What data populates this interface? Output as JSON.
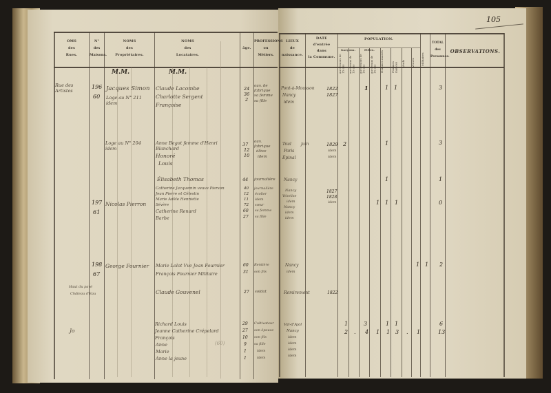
{
  "page_number": "105",
  "headers": {
    "rue": [
      "OMS",
      "des",
      "Rues."
    ],
    "maison": [
      "N°",
      "des",
      "Maisons."
    ],
    "proprietaires": [
      "NOMS",
      "des",
      "Propriétaires."
    ],
    "locataires": [
      "NOMS",
      "des",
      "Locataires."
    ],
    "age": "âge.",
    "profession": [
      "PROFESSIONS",
      "ou",
      "Métiers."
    ],
    "lieu": [
      "LIEUX",
      "de",
      "naissance."
    ],
    "date": [
      "DATE",
      "d'entrée",
      "dans",
      "la Commune."
    ],
    "population": "POPULATION.",
    "population_groups": [
      "Garçons.",
      "Filles."
    ],
    "population_sub": [
      "au-dessous de 15 ans",
      "au-dessus de 15 ans",
      "au-dessous de 15 ans",
      "au-dessus de 15 ans",
      "Hommes mariés",
      "Femmes mariées",
      "Veufs",
      "Veuves"
    ],
    "militaires": "Militaires",
    "total": [
      "TOTAL",
      "des",
      "Personnes."
    ],
    "observations": "OBSERVATIONS."
  },
  "mm_labels": [
    "M.M.",
    "M.M."
  ],
  "entries": [
    {
      "rue": "Rue des Artistes",
      "maison": [
        "196",
        "60"
      ],
      "proprietaire": [
        "Jacques Simon",
        "Loge au N° 211 idem"
      ],
      "locataires": [
        "Claude Lacombe",
        "Charlotte Sergent",
        "Françoise"
      ],
      "ages": [
        "24",
        "36",
        "2"
      ],
      "professions": [
        "ouv. de fabrique",
        "sa femme",
        "sa fille"
      ],
      "lieux": [
        "Pont-à-Mousson",
        "Nancy",
        "idem"
      ],
      "dates": [
        "1822",
        "1827"
      ],
      "population_marks": [
        "1",
        "1",
        "1"
      ],
      "total": "3"
    },
    {
      "proprietaire": [
        "Loge au N° 204 idem"
      ],
      "locataires": [
        "Anne Begot femme d'Henri Blanchard",
        "Honoré",
        "Louis"
      ],
      "ages": [
        "37",
        "12",
        "10"
      ],
      "professions": [
        "ouv. fabrique",
        "élève",
        "idem"
      ],
      "lieux": [
        "Toul",
        "Paris",
        "Épinal"
      ],
      "lieu_note": "juin",
      "dates": [
        "1829",
        "idem",
        "idem"
      ],
      "population_marks": [
        "2",
        "1"
      ],
      "total": "3"
    },
    {
      "locataires": [
        "Élisabeth Thomas"
      ],
      "ages": [
        "44"
      ],
      "professions": [
        "journalière"
      ],
      "lieux": [
        "Nancy"
      ],
      "population_marks": [
        "1"
      ],
      "total": "1"
    },
    {
      "maison": [
        "197",
        "61"
      ],
      "proprietaire": [
        "Nicolas Pierron"
      ],
      "locataires": [
        "Catherine Jacquemin veuve Pierson",
        "Jean Pierre et Célestin",
        "Marie Adèle Henriette",
        "Sévère",
        "Catherine Renard",
        "Barbe"
      ],
      "ages": [
        "40",
        "12",
        "11",
        "72",
        "60",
        "27"
      ],
      "professions": [
        "journalière",
        "écolier",
        "idem",
        "sœur",
        "sa femme",
        "sa fille"
      ],
      "lieux": [
        "Nancy",
        "Vézelise",
        "idem",
        "Nancy",
        "idem",
        "idem"
      ],
      "dates": [
        "1827",
        "1828",
        "idem"
      ],
      "population_marks": [
        "1",
        "1",
        "1"
      ],
      "total": "0"
    },
    {
      "maison": [
        "198",
        "67"
      ],
      "proprietaire": [
        "George Fournier"
      ],
      "locataires": [
        "Marie Lolot Vve Jean Fournier",
        "François Fournier Militaire"
      ],
      "ages": [
        "60",
        "31"
      ],
      "professions": [
        "Rentière",
        "son fils"
      ],
      "lieux": [
        "Nancy",
        "idem"
      ],
      "population_marks": [
        "1",
        "1"
      ],
      "total": "2"
    },
    {
      "rue": [
        "Haut du pavé",
        "Château d'Eau"
      ],
      "locataires": [
        "Claude Gouvenel"
      ],
      "ages": [
        "27"
      ],
      "professions": [
        "soldat"
      ],
      "lieux": [
        "Remiremont"
      ],
      "dates": [
        "1822"
      ]
    },
    {
      "rue": "Jo",
      "locataires": [
        "Richard Louis",
        "Jeanne Catherine Crépelard",
        "François",
        "Anne",
        "Marie",
        "Anne la jeune"
      ],
      "annotation": "(60)",
      "ages": [
        "29",
        "27",
        "10",
        "9",
        "1",
        "1"
      ],
      "professions": [
        "Cultivateur",
        "son épouse",
        "son fils",
        "sa fille",
        "idem",
        "idem"
      ],
      "lieux": [
        "Val-d'Ajol",
        "Nancy",
        "idem",
        "idem",
        "idem",
        "idem"
      ],
      "population_rows": [
        [
          "1",
          "3",
          "1",
          "1"
        ],
        [
          "2",
          ".",
          "4",
          "1",
          "1",
          "3",
          ".",
          "1"
        ]
      ],
      "totals": [
        "6",
        "13"
      ]
    }
  ]
}
